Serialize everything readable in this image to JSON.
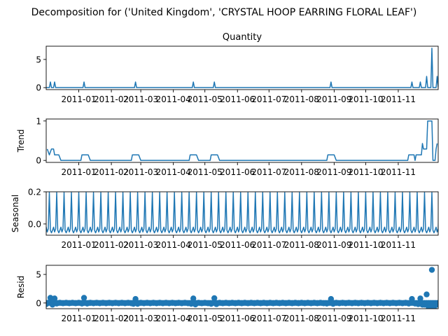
{
  "figure": {
    "suptitle": "Decomposition for ('United Kingdom', 'CRYSTAL HOOP EARRING FLORAL LEAF')"
  },
  "chart_data": [
    {
      "type": "line",
      "title": "Quantity",
      "ylabel": "",
      "color": "#1f77b4",
      "xlim": [
        "2010-12-01",
        "2011-12-09"
      ],
      "ylim": [
        -0.35,
        7.35
      ],
      "yticks": [
        0,
        5
      ],
      "xticks": [
        "2011-01",
        "2011-02",
        "2011-03",
        "2011-04",
        "2011-05",
        "2011-06",
        "2011-07",
        "2011-08",
        "2011-09",
        "2011-10",
        "2011-11"
      ],
      "baseline": 0,
      "spikes": [
        {
          "x": "2010-12-05",
          "y": 1
        },
        {
          "x": "2010-12-09",
          "y": 1
        },
        {
          "x": "2011-01-06",
          "y": 1
        },
        {
          "x": "2011-02-24",
          "y": 1
        },
        {
          "x": "2011-04-20",
          "y": 1
        },
        {
          "x": "2011-05-10",
          "y": 1
        },
        {
          "x": "2011-08-29",
          "y": 1
        },
        {
          "x": "2011-11-14",
          "y": 1
        },
        {
          "x": "2011-11-22",
          "y": 1
        },
        {
          "x": "2011-11-28",
          "y": 2
        },
        {
          "x": "2011-12-03",
          "y": 7
        },
        {
          "x": "2011-12-08",
          "y": 2
        }
      ]
    },
    {
      "type": "line",
      "title": "",
      "ylabel": "Trend",
      "color": "#1f77b4",
      "xlim": [
        "2010-12-01",
        "2011-12-09"
      ],
      "ylim": [
        -0.05,
        1.05
      ],
      "yticks": [
        0,
        1
      ],
      "xticks": [
        "2011-01",
        "2011-02",
        "2011-03",
        "2011-04",
        "2011-05",
        "2011-06",
        "2011-07",
        "2011-08",
        "2011-09",
        "2011-10",
        "2011-11"
      ],
      "points": [
        {
          "x": "2010-12-02",
          "y": 0.29
        },
        {
          "x": "2010-12-04",
          "y": 0.14
        },
        {
          "x": "2010-12-06",
          "y": 0.29
        },
        {
          "x": "2010-12-08",
          "y": 0.29
        },
        {
          "x": "2010-12-09",
          "y": 0.14
        },
        {
          "x": "2010-12-13",
          "y": 0.14
        },
        {
          "x": "2010-12-15",
          "y": 0
        },
        {
          "x": "2011-01-03",
          "y": 0
        },
        {
          "x": "2011-01-04",
          "y": 0.14
        },
        {
          "x": "2011-01-10",
          "y": 0.14
        },
        {
          "x": "2011-01-12",
          "y": 0
        },
        {
          "x": "2011-02-20",
          "y": 0
        },
        {
          "x": "2011-02-21",
          "y": 0.14
        },
        {
          "x": "2011-02-27",
          "y": 0.14
        },
        {
          "x": "2011-03-01",
          "y": 0
        },
        {
          "x": "2011-04-16",
          "y": 0
        },
        {
          "x": "2011-04-17",
          "y": 0.14
        },
        {
          "x": "2011-04-23",
          "y": 0.14
        },
        {
          "x": "2011-04-25",
          "y": 0
        },
        {
          "x": "2011-05-06",
          "y": 0
        },
        {
          "x": "2011-05-07",
          "y": 0.14
        },
        {
          "x": "2011-05-13",
          "y": 0.14
        },
        {
          "x": "2011-05-15",
          "y": 0
        },
        {
          "x": "2011-08-25",
          "y": 0
        },
        {
          "x": "2011-08-26",
          "y": 0.14
        },
        {
          "x": "2011-09-01",
          "y": 0.14
        },
        {
          "x": "2011-09-03",
          "y": 0
        },
        {
          "x": "2011-11-10",
          "y": 0
        },
        {
          "x": "2011-11-11",
          "y": 0.14
        },
        {
          "x": "2011-11-16",
          "y": 0.14
        },
        {
          "x": "2011-11-17",
          "y": 0
        },
        {
          "x": "2011-11-18",
          "y": 0.14
        },
        {
          "x": "2011-11-23",
          "y": 0.14
        },
        {
          "x": "2011-11-24",
          "y": 0.43
        },
        {
          "x": "2011-11-25",
          "y": 0.29
        },
        {
          "x": "2011-11-28",
          "y": 0.29
        },
        {
          "x": "2011-11-29",
          "y": 1
        },
        {
          "x": "2011-12-03",
          "y": 1
        },
        {
          "x": "2011-12-04",
          "y": 0
        },
        {
          "x": "2011-12-06",
          "y": 0
        },
        {
          "x": "2011-12-07",
          "y": 0.29
        },
        {
          "x": "2011-12-08",
          "y": 0.43
        }
      ]
    },
    {
      "type": "line",
      "title": "",
      "ylabel": "Seasonal",
      "color": "#1f77b4",
      "xlim": [
        "2010-12-01",
        "2011-12-09"
      ],
      "ylim": [
        -0.07,
        0.2
      ],
      "yticks": [
        0.2,
        0.0
      ],
      "ytick_labels": [
        "0.2",
        "0.0"
      ],
      "xticks": [
        "2011-01",
        "2011-02",
        "2011-03",
        "2011-04",
        "2011-05",
        "2011-06",
        "2011-07",
        "2011-08",
        "2011-09",
        "2011-10",
        "2011-11"
      ],
      "period_days": 7,
      "first_peak": "2010-12-04",
      "weekly_pattern": [
        0.195,
        -0.04,
        -0.055,
        -0.04,
        -0.02,
        -0.05,
        -0.03
      ]
    },
    {
      "type": "scatter",
      "title": "",
      "ylabel": "Resid",
      "color": "#1f77b4",
      "xlim": [
        "2010-12-01",
        "2011-12-09"
      ],
      "ylim": [
        -1.0,
        6.6
      ],
      "yticks": [
        0,
        5
      ],
      "xticks": [
        "2011-01",
        "2011-02",
        "2011-03",
        "2011-04",
        "2011-05",
        "2011-06",
        "2011-07",
        "2011-08",
        "2011-09",
        "2011-10",
        "2011-11"
      ],
      "points": [
        {
          "x": "2010-12-01",
          "y": -0.2
        },
        {
          "x": "2010-12-03",
          "y": 0.05
        },
        {
          "x": "2010-12-05",
          "y": 0.9
        },
        {
          "x": "2010-12-07",
          "y": -0.3
        },
        {
          "x": "2010-12-09",
          "y": 0.8
        },
        {
          "x": "2010-12-11",
          "y": -0.1
        },
        {
          "x": "2010-12-14",
          "y": 0.05
        },
        {
          "x": "2010-12-17",
          "y": -0.05
        },
        {
          "x": "2010-12-20",
          "y": 0.05
        },
        {
          "x": "2010-12-23",
          "y": -0.05
        },
        {
          "x": "2010-12-26",
          "y": 0.05
        },
        {
          "x": "2010-12-29",
          "y": -0.05
        },
        {
          "x": "2011-01-01",
          "y": 0.05
        },
        {
          "x": "2011-01-04",
          "y": -0.1
        },
        {
          "x": "2011-01-06",
          "y": 0.9
        },
        {
          "x": "2011-01-09",
          "y": -0.1
        },
        {
          "x": "2011-01-12",
          "y": 0.05
        },
        {
          "x": "2011-01-15",
          "y": -0.05
        },
        {
          "x": "2011-01-18",
          "y": 0.05
        },
        {
          "x": "2011-01-21",
          "y": -0.05
        },
        {
          "x": "2011-01-24",
          "y": 0.05
        },
        {
          "x": "2011-01-27",
          "y": -0.05
        },
        {
          "x": "2011-01-30",
          "y": 0.05
        },
        {
          "x": "2011-02-02",
          "y": -0.05
        },
        {
          "x": "2011-02-05",
          "y": 0.05
        },
        {
          "x": "2011-02-08",
          "y": -0.05
        },
        {
          "x": "2011-02-11",
          "y": 0.05
        },
        {
          "x": "2011-02-14",
          "y": -0.05
        },
        {
          "x": "2011-02-17",
          "y": 0.05
        },
        {
          "x": "2011-02-20",
          "y": -0.05
        },
        {
          "x": "2011-02-22",
          "y": -0.15
        },
        {
          "x": "2011-02-24",
          "y": 0.7
        },
        {
          "x": "2011-02-26",
          "y": -0.15
        },
        {
          "x": "2011-03-01",
          "y": 0.05
        },
        {
          "x": "2011-03-04",
          "y": -0.05
        },
        {
          "x": "2011-03-07",
          "y": 0.05
        },
        {
          "x": "2011-03-10",
          "y": -0.05
        },
        {
          "x": "2011-03-13",
          "y": 0.05
        },
        {
          "x": "2011-03-16",
          "y": -0.05
        },
        {
          "x": "2011-03-19",
          "y": 0.05
        },
        {
          "x": "2011-03-22",
          "y": -0.05
        },
        {
          "x": "2011-03-25",
          "y": 0.05
        },
        {
          "x": "2011-03-28",
          "y": -0.05
        },
        {
          "x": "2011-03-31",
          "y": 0.05
        },
        {
          "x": "2011-04-03",
          "y": -0.05
        },
        {
          "x": "2011-04-06",
          "y": 0.05
        },
        {
          "x": "2011-04-09",
          "y": -0.05
        },
        {
          "x": "2011-04-12",
          "y": 0.05
        },
        {
          "x": "2011-04-15",
          "y": -0.05
        },
        {
          "x": "2011-04-18",
          "y": -0.15
        },
        {
          "x": "2011-04-20",
          "y": 0.8
        },
        {
          "x": "2011-04-22",
          "y": -0.25
        },
        {
          "x": "2011-04-25",
          "y": 0.05
        },
        {
          "x": "2011-04-28",
          "y": -0.05
        },
        {
          "x": "2011-05-01",
          "y": 0.05
        },
        {
          "x": "2011-05-04",
          "y": -0.05
        },
        {
          "x": "2011-05-07",
          "y": -0.15
        },
        {
          "x": "2011-05-10",
          "y": 0.85
        },
        {
          "x": "2011-05-12",
          "y": -0.2
        },
        {
          "x": "2011-05-15",
          "y": 0.05
        },
        {
          "x": "2011-05-18",
          "y": -0.05
        },
        {
          "x": "2011-05-21",
          "y": 0.05
        },
        {
          "x": "2011-05-24",
          "y": -0.05
        },
        {
          "x": "2011-05-27",
          "y": 0.05
        },
        {
          "x": "2011-05-30",
          "y": -0.05
        },
        {
          "x": "2011-06-02",
          "y": 0.05
        },
        {
          "x": "2011-06-05",
          "y": -0.05
        },
        {
          "x": "2011-06-08",
          "y": 0.05
        },
        {
          "x": "2011-06-11",
          "y": -0.05
        },
        {
          "x": "2011-06-14",
          "y": 0.05
        },
        {
          "x": "2011-06-17",
          "y": -0.05
        },
        {
          "x": "2011-06-20",
          "y": 0.05
        },
        {
          "x": "2011-06-23",
          "y": -0.05
        },
        {
          "x": "2011-06-26",
          "y": 0.05
        },
        {
          "x": "2011-06-29",
          "y": -0.05
        },
        {
          "x": "2011-07-02",
          "y": 0.05
        },
        {
          "x": "2011-07-05",
          "y": -0.05
        },
        {
          "x": "2011-07-08",
          "y": 0.05
        },
        {
          "x": "2011-07-11",
          "y": -0.05
        },
        {
          "x": "2011-07-14",
          "y": 0.05
        },
        {
          "x": "2011-07-17",
          "y": -0.05
        },
        {
          "x": "2011-07-20",
          "y": 0.05
        },
        {
          "x": "2011-07-23",
          "y": -0.05
        },
        {
          "x": "2011-07-26",
          "y": 0.05
        },
        {
          "x": "2011-07-29",
          "y": -0.05
        },
        {
          "x": "2011-08-01",
          "y": 0.05
        },
        {
          "x": "2011-08-04",
          "y": -0.05
        },
        {
          "x": "2011-08-07",
          "y": 0.05
        },
        {
          "x": "2011-08-10",
          "y": -0.05
        },
        {
          "x": "2011-08-13",
          "y": 0.05
        },
        {
          "x": "2011-08-16",
          "y": -0.05
        },
        {
          "x": "2011-08-19",
          "y": 0.05
        },
        {
          "x": "2011-08-22",
          "y": -0.05
        },
        {
          "x": "2011-08-25",
          "y": -0.1
        },
        {
          "x": "2011-08-29",
          "y": 0.7
        },
        {
          "x": "2011-08-31",
          "y": -0.15
        },
        {
          "x": "2011-09-03",
          "y": 0.05
        },
        {
          "x": "2011-09-06",
          "y": -0.05
        },
        {
          "x": "2011-09-09",
          "y": 0.05
        },
        {
          "x": "2011-09-12",
          "y": -0.05
        },
        {
          "x": "2011-09-15",
          "y": 0.05
        },
        {
          "x": "2011-09-18",
          "y": -0.05
        },
        {
          "x": "2011-09-21",
          "y": 0.05
        },
        {
          "x": "2011-09-24",
          "y": -0.05
        },
        {
          "x": "2011-09-27",
          "y": 0.05
        },
        {
          "x": "2011-09-30",
          "y": -0.05
        },
        {
          "x": "2011-10-03",
          "y": 0.05
        },
        {
          "x": "2011-10-06",
          "y": -0.05
        },
        {
          "x": "2011-10-09",
          "y": 0.05
        },
        {
          "x": "2011-10-12",
          "y": -0.05
        },
        {
          "x": "2011-10-15",
          "y": 0.05
        },
        {
          "x": "2011-10-18",
          "y": -0.05
        },
        {
          "x": "2011-10-21",
          "y": 0.05
        },
        {
          "x": "2011-10-24",
          "y": -0.05
        },
        {
          "x": "2011-10-27",
          "y": 0.05
        },
        {
          "x": "2011-10-30",
          "y": -0.05
        },
        {
          "x": "2011-11-02",
          "y": 0.05
        },
        {
          "x": "2011-11-05",
          "y": -0.05
        },
        {
          "x": "2011-11-08",
          "y": 0.05
        },
        {
          "x": "2011-11-11",
          "y": -0.1
        },
        {
          "x": "2011-11-14",
          "y": 0.7
        },
        {
          "x": "2011-11-17",
          "y": -0.1
        },
        {
          "x": "2011-11-20",
          "y": -0.2
        },
        {
          "x": "2011-11-22",
          "y": 0.8
        },
        {
          "x": "2011-11-24",
          "y": -0.3
        },
        {
          "x": "2011-11-26",
          "y": -0.3
        },
        {
          "x": "2011-11-28",
          "y": 1.5
        },
        {
          "x": "2011-11-30",
          "y": -0.8
        },
        {
          "x": "2011-12-01",
          "y": -0.6
        },
        {
          "x": "2011-12-02",
          "y": -0.8
        },
        {
          "x": "2011-12-03",
          "y": 5.8
        },
        {
          "x": "2011-12-04",
          "y": -0.2
        },
        {
          "x": "2011-12-05",
          "y": -0.8
        },
        {
          "x": "2011-12-06",
          "y": -0.1
        },
        {
          "x": "2011-12-07",
          "y": -0.3
        },
        {
          "x": "2011-12-08",
          "y": -0.2
        },
        {
          "x": "2011-12-09",
          "y": -0.3
        }
      ]
    }
  ]
}
